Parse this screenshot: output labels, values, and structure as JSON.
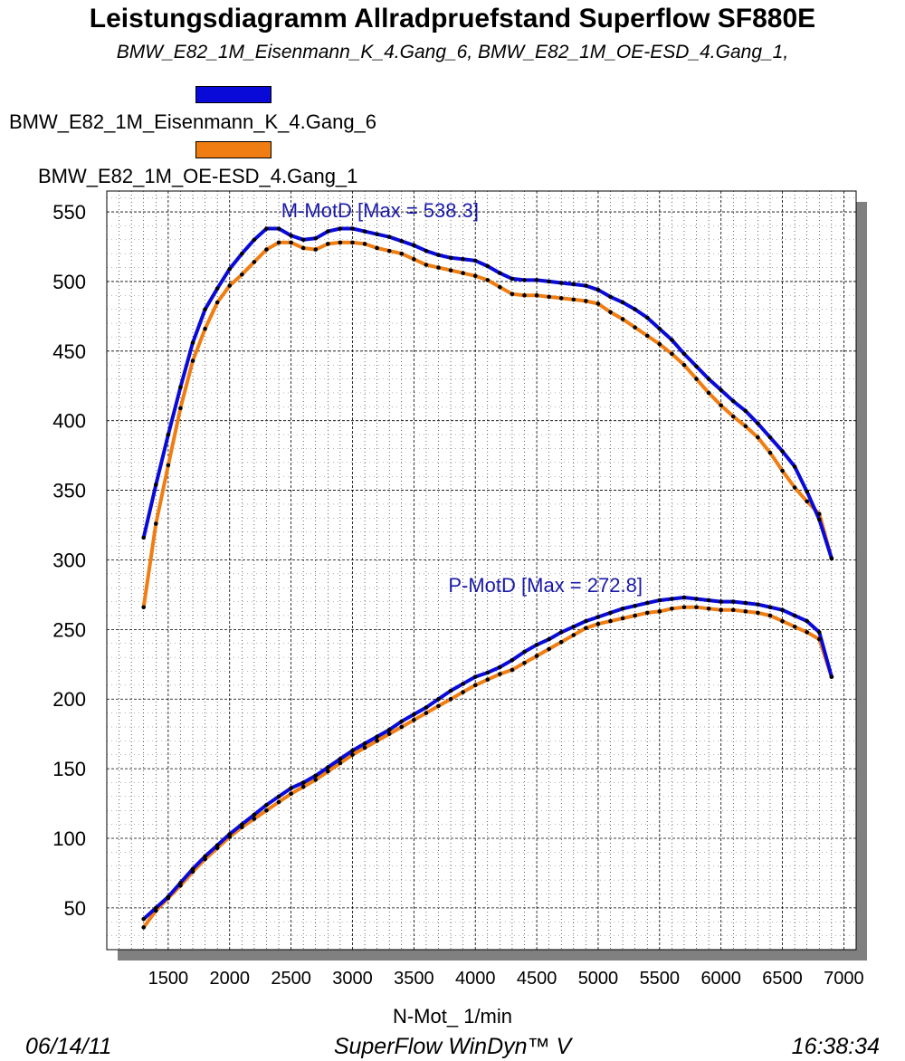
{
  "title": "Leistungsdiagramm Allradpruefstand Superflow SF880E",
  "subtitle": "BMW_E82_1M_Eisenmann_K_4.Gang_6, BMW_E82_1M_OE-ESD_4.Gang_1,",
  "legend": [
    {
      "label": "BMW_E82_1M_Eisenmann_K_4.Gang_6",
      "color": "#0a0ad8"
    },
    {
      "label": "BMW_E82_1M_OE-ESD_4.Gang_1",
      "color": "#f07d12"
    }
  ],
  "footer": {
    "date": "06/14/11",
    "app": "SuperFlow WinDyn™ V",
    "time": "16:38:34"
  },
  "colors": {
    "series_blue": "#0a0ad8",
    "series_orange": "#f07d12",
    "annotation": "#1a1aa8",
    "grid": "#000000",
    "shadow": "#808080"
  },
  "chart_data": {
    "type": "line",
    "xlabel": "N-Mot_ 1/min",
    "ylabel": "",
    "xlim": [
      1000,
      7100
    ],
    "ylim": [
      20,
      565
    ],
    "xticks": [
      1500,
      2000,
      2500,
      3000,
      3500,
      4000,
      4500,
      5000,
      5500,
      6000,
      6500,
      7000
    ],
    "yticks": [
      50,
      100,
      150,
      200,
      250,
      300,
      350,
      400,
      450,
      500,
      550
    ],
    "grid": true,
    "legend_position": "top-left",
    "annotations": [
      {
        "text": "M-MotD [Max = 538.3]",
        "x": 2420,
        "y": 546
      },
      {
        "text": "P-MotD [Max = 272.8]",
        "x": 3780,
        "y": 277
      }
    ],
    "x": [
      1300,
      1400,
      1500,
      1600,
      1700,
      1800,
      1900,
      2000,
      2100,
      2200,
      2300,
      2400,
      2500,
      2600,
      2700,
      2800,
      2900,
      3000,
      3100,
      3200,
      3300,
      3400,
      3500,
      3600,
      3700,
      3800,
      3900,
      4000,
      4100,
      4200,
      4300,
      4400,
      4500,
      4600,
      4700,
      4800,
      4900,
      5000,
      5100,
      5200,
      5300,
      5400,
      5500,
      5600,
      5700,
      5800,
      5900,
      6000,
      6100,
      6200,
      6300,
      6400,
      6500,
      6600,
      6700,
      6800,
      6900
    ],
    "series": [
      {
        "name": "BMW_E82_1M_Eisenmann_K_4.Gang_6",
        "color": "#0a0ad8",
        "torque": [
          316,
          354,
          390,
          424,
          456,
          480,
          495,
          509,
          520,
          530,
          538,
          538,
          533,
          530,
          531,
          536,
          538,
          538,
          536,
          534,
          532,
          529,
          526,
          522,
          519,
          517,
          516,
          515,
          511,
          506,
          502,
          501,
          501,
          500,
          499,
          498,
          497,
          494,
          489,
          485,
          480,
          474,
          466,
          458,
          448,
          439,
          430,
          422,
          414,
          407,
          398,
          388,
          378,
          367,
          349,
          329,
          301
        ],
        "power": [
          42,
          50,
          58,
          68,
          78,
          87,
          95,
          103,
          110,
          117,
          124,
          130,
          136,
          140,
          145,
          151,
          157,
          163,
          168,
          173,
          178,
          184,
          189,
          194,
          200,
          206,
          211,
          216,
          219,
          223,
          228,
          234,
          239,
          243,
          248,
          252,
          256,
          259,
          262,
          265,
          267,
          269,
          271,
          272,
          273,
          272,
          271,
          270,
          270,
          269,
          268,
          266,
          264,
          260,
          256,
          248,
          216
        ]
      },
      {
        "name": "BMW_E82_1M_OE-ESD_4.Gang_1",
        "color": "#f07d12",
        "torque": [
          266,
          326,
          368,
          409,
          443,
          466,
          485,
          497,
          505,
          514,
          523,
          528,
          528,
          524,
          523,
          527,
          528,
          528,
          527,
          524,
          522,
          520,
          516,
          512,
          510,
          508,
          506,
          504,
          501,
          496,
          491,
          490,
          490,
          489,
          488,
          487,
          486,
          484,
          478,
          473,
          467,
          461,
          455,
          448,
          440,
          430,
          420,
          411,
          403,
          396,
          388,
          377,
          364,
          352,
          342,
          333,
          301
        ],
        "power": [
          36,
          48,
          57,
          66,
          76,
          85,
          93,
          101,
          108,
          114,
          120,
          126,
          132,
          137,
          142,
          148,
          154,
          160,
          165,
          170,
          175,
          180,
          185,
          190,
          195,
          200,
          205,
          210,
          214,
          218,
          221,
          226,
          231,
          236,
          241,
          246,
          251,
          254,
          256,
          258,
          260,
          262,
          263,
          265,
          266,
          266,
          265,
          264,
          264,
          263,
          262,
          260,
          256,
          252,
          248,
          243,
          216
        ]
      }
    ]
  }
}
